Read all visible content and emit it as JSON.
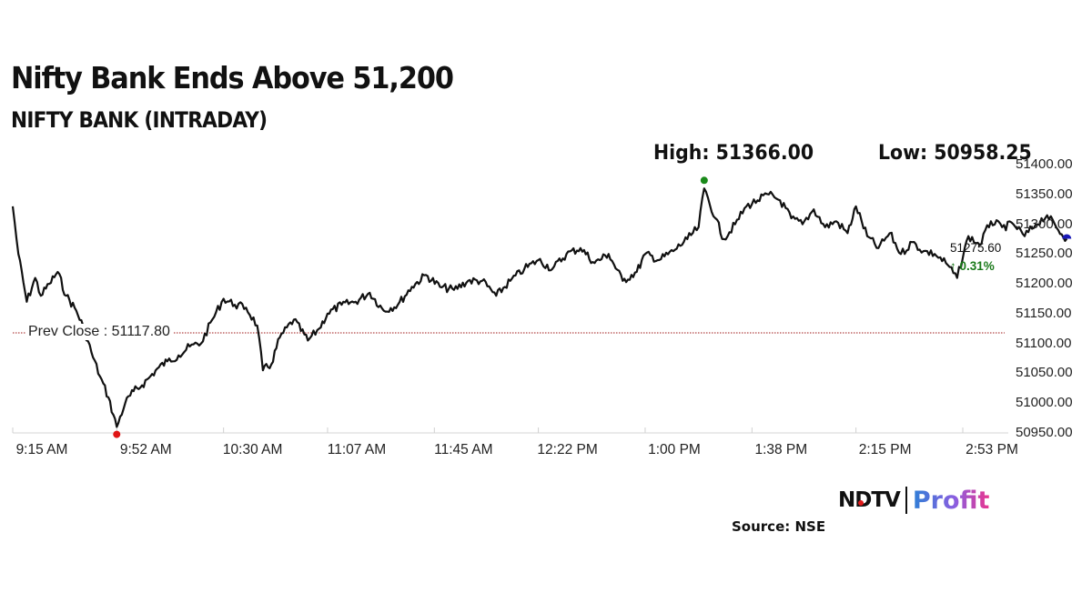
{
  "header": {
    "title": "Nifty Bank Ends Above 51,200",
    "subtitle": "NIFTY BANK (INTRADAY)",
    "high_label": "High: 51366.00",
    "low_label": "Low: 50958.25"
  },
  "annotations": {
    "prev_close_label": "Prev Close : 51117.80",
    "last_value": "51275.60",
    "change": "↑ 0.31%"
  },
  "footer": {
    "brand_left": "NDTV",
    "brand_right": "Profit",
    "source": "Source: NSE"
  },
  "colors": {
    "line": "#111111",
    "prev_close_line": "#a01818",
    "high_marker": "#1a8a1a",
    "low_marker": "#e01515",
    "last_marker": "#1a1ab8",
    "change_up": "#1a7a1a"
  },
  "chart_data": {
    "type": "line",
    "title": "Nifty Bank Ends Above 51,200",
    "subtitle": "NIFTY BANK (INTRADAY)",
    "xlabel": "",
    "ylabel": "",
    "ylim": [
      50950,
      51400
    ],
    "y_ticks": [
      "51400.00",
      "51350.00",
      "51300.00",
      "51250.00",
      "51200.00",
      "51150.00",
      "51100.00",
      "51050.00",
      "51000.00",
      "50950.00"
    ],
    "x_ticks": [
      "9:15 AM",
      "9:52 AM",
      "10:30 AM",
      "11:07 AM",
      "11:45 AM",
      "12:22 PM",
      "1:00 PM",
      "1:38 PM",
      "2:15 PM",
      "2:53 PM"
    ],
    "grid": false,
    "legend": null,
    "reference_line": {
      "label": "Prev Close",
      "value": 51117.8
    },
    "high": {
      "value": 51366.0,
      "time": "~1:21 PM"
    },
    "low": {
      "value": 50958.25,
      "time": "~9:52 AM"
    },
    "close": {
      "value": 51275.6,
      "change_pct": 0.31
    },
    "series": [
      {
        "name": "NIFTY BANK",
        "x": [
          "9:15",
          "9:17",
          "9:20",
          "9:23",
          "9:25",
          "9:28",
          "9:31",
          "9:34",
          "9:37",
          "9:40",
          "9:43",
          "9:46",
          "9:49",
          "9:52",
          "9:55",
          "9:58",
          "10:01",
          "10:04",
          "10:07",
          "10:10",
          "10:14",
          "10:18",
          "10:22",
          "10:26",
          "10:30",
          "10:34",
          "10:38",
          "10:42",
          "10:44",
          "10:47",
          "10:50",
          "10:55",
          "11:00",
          "11:04",
          "11:07",
          "11:12",
          "11:17",
          "11:22",
          "11:27",
          "11:32",
          "11:37",
          "11:42",
          "11:47",
          "11:52",
          "11:57",
          "12:02",
          "12:07",
          "12:12",
          "12:17",
          "12:22",
          "12:27",
          "12:32",
          "12:37",
          "12:42",
          "12:47",
          "12:52",
          "12:57",
          "1:00",
          "1:05",
          "1:10",
          "1:15",
          "1:19",
          "1:21",
          "1:25",
          "1:28",
          "1:32",
          "1:36",
          "1:40",
          "1:44",
          "1:48",
          "1:52",
          "1:56",
          "2:00",
          "2:04",
          "2:08",
          "2:12",
          "2:15",
          "2:19",
          "2:23",
          "2:27",
          "2:31",
          "2:35",
          "2:39",
          "2:43",
          "2:47",
          "2:51",
          "2:55",
          "2:59",
          "3:03",
          "3:07",
          "3:11",
          "3:15",
          "3:19",
          "3:23",
          "3:27",
          "3:30"
        ],
        "values": [
          51330,
          51250,
          51170,
          51210,
          51180,
          51200,
          51220,
          51180,
          51160,
          51130,
          51085,
          51045,
          51010,
          50960,
          51000,
          51020,
          51030,
          51045,
          51060,
          51070,
          51080,
          51095,
          51100,
          51140,
          51175,
          51165,
          51160,
          51130,
          51055,
          51065,
          51110,
          51140,
          51105,
          51125,
          51150,
          51165,
          51170,
          51185,
          51155,
          51165,
          51195,
          51215,
          51195,
          51190,
          51205,
          51205,
          51180,
          51205,
          51225,
          51240,
          51225,
          51250,
          51260,
          51235,
          51250,
          51205,
          51220,
          51250,
          51240,
          51255,
          51275,
          51295,
          51360,
          51310,
          51275,
          51300,
          51330,
          51340,
          51350,
          51340,
          51310,
          51300,
          51325,
          51295,
          51305,
          51285,
          51330,
          51280,
          51260,
          51285,
          51250,
          51270,
          51255,
          51250,
          51235,
          51210,
          51280,
          51265,
          51305,
          51295,
          51300,
          51280,
          51300,
          51315,
          51290,
          51275.6
        ]
      }
    ]
  }
}
